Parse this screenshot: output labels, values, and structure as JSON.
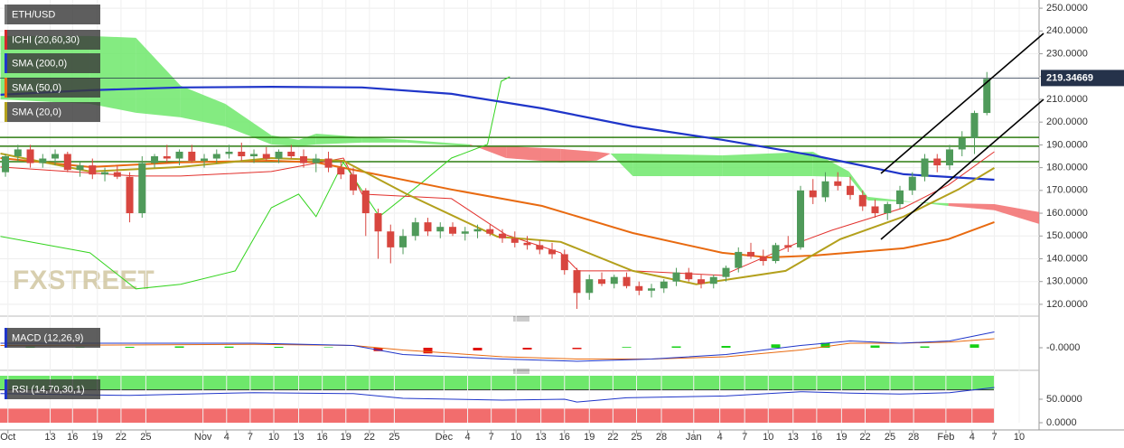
{
  "chart_data": [
    {
      "type": "candlestick",
      "symbol": "ETH/USD",
      "watermark": "FXSTREET",
      "grid": true,
      "up_color": "#4f9a5a",
      "down_color": "#d8463f",
      "xlim": [
        -0.44,
        83.2
      ],
      "ylim": [
        116.8,
        253.6
      ],
      "yticks": [
        {
          "value": 120,
          "label": "120.0000"
        },
        {
          "value": 130,
          "label": "130.0000"
        },
        {
          "value": 140,
          "label": "140.0000"
        },
        {
          "value": 150,
          "label": "150.0000"
        },
        {
          "value": 160,
          "label": "160.0000"
        },
        {
          "value": 170,
          "label": "170.0000"
        },
        {
          "value": 180,
          "label": "180.0000"
        },
        {
          "value": 190,
          "label": "190.0000"
        },
        {
          "value": 200,
          "label": "200.0000"
        },
        {
          "value": 210,
          "label": "210.0000"
        },
        {
          "value": 220,
          "label": "220.0000"
        },
        {
          "value": 230,
          "label": "230.0000"
        },
        {
          "value": 240,
          "label": "240.0000"
        },
        {
          "value": 250,
          "label": "250.0000"
        }
      ],
      "last_price": 219.34669,
      "last_price_color": "#25324a",
      "levels": [
        193.3,
        189.4,
        182.6
      ],
      "level_color": "#2f7d12",
      "x": [
        0,
        1,
        2,
        3,
        4,
        5,
        6,
        7,
        8,
        9,
        10,
        11,
        12,
        13,
        14,
        15,
        16,
        17,
        18,
        19,
        20,
        21,
        22,
        23,
        24,
        25,
        26,
        27,
        28,
        29,
        30,
        31,
        32,
        33,
        34,
        35,
        36,
        37,
        38,
        39,
        40,
        41,
        42,
        43,
        44,
        45,
        46,
        47,
        48,
        49,
        50,
        51,
        52,
        53,
        54,
        55,
        56,
        57,
        58,
        59,
        60,
        61,
        62,
        63,
        64,
        65,
        66,
        67,
        68,
        69,
        70,
        71,
        72,
        73,
        74,
        75,
        76,
        77,
        78,
        79
      ],
      "candles": [
        [
          178,
          186,
          176,
          185
        ],
        [
          185,
          190,
          183,
          188
        ],
        [
          188,
          190,
          180,
          182
        ],
        [
          182,
          186,
          180,
          184
        ],
        [
          184,
          188,
          181,
          186
        ],
        [
          186,
          187,
          178,
          179
        ],
        [
          179,
          183,
          176,
          181
        ],
        [
          181,
          184,
          175,
          177
        ],
        [
          177,
          180,
          174,
          178
        ],
        [
          178,
          181,
          175,
          176
        ],
        [
          176,
          178,
          156,
          160
        ],
        [
          160,
          185,
          158,
          182
        ],
        [
          182,
          186,
          180,
          185
        ],
        [
          185,
          190,
          182,
          184
        ],
        [
          184,
          188,
          181,
          187
        ],
        [
          187,
          190,
          182,
          183
        ],
        [
          183,
          186,
          180,
          184
        ],
        [
          184,
          188,
          182,
          186
        ],
        [
          186,
          190,
          184,
          187
        ],
        [
          187,
          191,
          183,
          185
        ],
        [
          185,
          188,
          182,
          186
        ],
        [
          186,
          189,
          183,
          184
        ],
        [
          184,
          188,
          182,
          187
        ],
        [
          187,
          190,
          184,
          185
        ],
        [
          185,
          188,
          180,
          182
        ],
        [
          182,
          186,
          178,
          184
        ],
        [
          184,
          187,
          178,
          180
        ],
        [
          180,
          183,
          175,
          177
        ],
        [
          177,
          180,
          168,
          170
        ],
        [
          170,
          171,
          150,
          160
        ],
        [
          160,
          162,
          140,
          152
        ],
        [
          152,
          155,
          138,
          145
        ],
        [
          145,
          153,
          142,
          150
        ],
        [
          150,
          158,
          148,
          156
        ],
        [
          156,
          158,
          150,
          152
        ],
        [
          152,
          156,
          149,
          154
        ],
        [
          154,
          156,
          150,
          151
        ],
        [
          151,
          154,
          148,
          152
        ],
        [
          152,
          155,
          149,
          153
        ],
        [
          153,
          155,
          150,
          151
        ],
        [
          151,
          153,
          147,
          149
        ],
        [
          149,
          152,
          145,
          147
        ],
        [
          147,
          150,
          144,
          146
        ],
        [
          146,
          148,
          142,
          144
        ],
        [
          144,
          147,
          140,
          142
        ],
        [
          142,
          144,
          133,
          135
        ],
        [
          135,
          136,
          118,
          125
        ],
        [
          125,
          133,
          122,
          131
        ],
        [
          131,
          134,
          128,
          129
        ],
        [
          129,
          133,
          127,
          132
        ],
        [
          132,
          134,
          127,
          128
        ],
        [
          128,
          130,
          124,
          126
        ],
        [
          126,
          129,
          123,
          127
        ],
        [
          127,
          131,
          125,
          130
        ],
        [
          130,
          136,
          128,
          134
        ],
        [
          134,
          136,
          130,
          131
        ],
        [
          131,
          133,
          127,
          129
        ],
        [
          129,
          133,
          127,
          132
        ],
        [
          132,
          137,
          130,
          136
        ],
        [
          136,
          145,
          134,
          143
        ],
        [
          143,
          147,
          140,
          141
        ],
        [
          141,
          144,
          137,
          139
        ],
        [
          139,
          147,
          138,
          146
        ],
        [
          146,
          150,
          143,
          145
        ],
        [
          145,
          172,
          144,
          170
        ],
        [
          170,
          175,
          164,
          167
        ],
        [
          167,
          178,
          165,
          174
        ],
        [
          174,
          178,
          170,
          172
        ],
        [
          172,
          176,
          166,
          168
        ],
        [
          168,
          170,
          161,
          163
        ],
        [
          163,
          166,
          158,
          160
        ],
        [
          160,
          165,
          157,
          164
        ],
        [
          164,
          172,
          162,
          170
        ],
        [
          170,
          178,
          168,
          176
        ],
        [
          176,
          186,
          174,
          184
        ],
        [
          184,
          186,
          178,
          181
        ],
        [
          181,
          190,
          179,
          188
        ],
        [
          188,
          196,
          185,
          193
        ],
        [
          193,
          205,
          186,
          204
        ],
        [
          204,
          222,
          203,
          219
        ]
      ],
      "ichimoku": {
        "name": "ICHI (20,60,30)",
        "color": "#d3282c",
        "cloud": {
          "up_color": "#6ee86b",
          "down_color": "#f26d6d",
          "x": [
            -0.4,
            6.8,
            10.5,
            14.1,
            17.7,
            21.4,
            23.6,
            25.0,
            28.7,
            32.3,
            37.4,
            40.3,
            44.7,
            47.6,
            48.7,
            50.5,
            57.7,
            65.0,
            67.9,
            69.4,
            75.9,
            79.6,
            83.2
          ],
          "span_a": [
            237.8,
            237.8,
            237.0,
            216.0,
            208.0,
            194.2,
            192.2,
            194.9,
            193.4,
            192.2,
            190.2,
            184.2,
            182.3,
            183.1,
            186.2,
            186.2,
            185.4,
            187.0,
            178.3,
            167.2,
            163.2,
            161.3,
            155.3
          ],
          "span_b": [
            210.0,
            208.0,
            204.1,
            202.1,
            198.1,
            190.2,
            189.4,
            190.2,
            191.0,
            191.0,
            189.4,
            189.4,
            188.2,
            187.0,
            186.2,
            176.3,
            176.3,
            176.3,
            175.9,
            165.6,
            164.4,
            164.0,
            160.5
          ]
        },
        "conversion": {
          "color": "#e2302c",
          "x": [
            -0.4,
            10.5,
            14.1,
            21.4,
            27.2,
            28.7,
            35.9,
            40.3,
            44.7,
            46.1,
            50.5,
            57.7,
            63.6,
            66.5,
            72.3,
            75.9,
            79.6
          ],
          "values": [
            180.3,
            176.3,
            176.3,
            178.3,
            184.2,
            168.4,
            166.4,
            150.5,
            142.6,
            134.7,
            134.7,
            132.7,
            146.6,
            152.5,
            162.4,
            172.4,
            187.0
          ]
        },
        "lagging": {
          "color": "#34d41f",
          "x": [
            -0.4,
            6.8,
            10.5,
            14.1,
            18.5,
            21.4,
            23.6,
            25.0,
            27.2,
            30.1,
            33.7,
            35.9,
            38.8,
            39.9,
            40.6
          ],
          "values": [
            149.8,
            142.6,
            126.8,
            128.8,
            134.7,
            162.4,
            168.4,
            158.5,
            182.3,
            158.5,
            174.2,
            184.2,
            190.2,
            217.9,
            219.9
          ]
        }
      },
      "series": [
        {
          "name": "SMA (200,0)",
          "color": "#1f35c9",
          "width": 2.2,
          "x": [
            -0.4,
            6.8,
            14.1,
            21.4,
            28.7,
            35.9,
            43.2,
            50.5,
            57.7,
            65.0,
            72.3,
            79.6
          ],
          "values": [
            212.0,
            214.0,
            215.2,
            215.5,
            215.2,
            212.4,
            206.0,
            198.1,
            192.2,
            185.4,
            177.1,
            174.7
          ]
        },
        {
          "name": "SMA (50,0)",
          "color": "#e86a10",
          "width": 2,
          "x": [
            -0.4,
            6.8,
            14.1,
            21.4,
            25.0,
            28.7,
            35.9,
            43.2,
            50.5,
            57.7,
            61.4,
            65.0,
            72.3,
            75.9,
            79.6
          ],
          "values": [
            184.2,
            180.3,
            182.3,
            183.0,
            182.3,
            178.3,
            170.4,
            163.2,
            151.3,
            142.6,
            140.6,
            141.4,
            144.6,
            148.6,
            156.1
          ]
        },
        {
          "name": "SMA (20,0)",
          "color": "#b3a01c",
          "width": 2,
          "x": [
            -0.4,
            6.8,
            14.1,
            21.4,
            27.2,
            32.3,
            39.6,
            44.7,
            50.5,
            55.6,
            62.8,
            67.2,
            72.3,
            76.7,
            79.6
          ],
          "values": [
            186.2,
            178.3,
            180.3,
            184.2,
            183.0,
            168.4,
            149.7,
            147.4,
            134.7,
            128.8,
            134.7,
            148.6,
            158.5,
            170.4,
            179.9
          ]
        }
      ]
    },
    {
      "type": "macd",
      "name": "MACD (12,26,9)",
      "xlim": [
        -0.44,
        83.2
      ],
      "ylim": [
        -8,
        11.6
      ],
      "yticks": [
        {
          "value": 0,
          "label": "-0.0000"
        }
      ],
      "macd": {
        "color": "#1f35c9",
        "x": [
          -0.4,
          20,
          28,
          32,
          40,
          46,
          52,
          58,
          64,
          68,
          72,
          76,
          79.6
        ],
        "values": [
          2,
          2,
          1,
          -3,
          -5,
          -6,
          -5,
          -3,
          1,
          3,
          2,
          3,
          7
        ]
      },
      "signal": {
        "color": "#e86a10",
        "x": [
          -0.4,
          20,
          28,
          32,
          40,
          46,
          52,
          58,
          64,
          68,
          72,
          76,
          79.6
        ],
        "values": [
          1,
          1.5,
          1,
          -1,
          -4,
          -5,
          -5,
          -4,
          -1,
          2,
          2,
          2.5,
          4
        ]
      },
      "histogram": {
        "up_color": "#16d016",
        "down_color": "#e0140f",
        "x": [
          2,
          6,
          10,
          14,
          18,
          22,
          26,
          30,
          34,
          38,
          42,
          46,
          50,
          54,
          58,
          62,
          66,
          70,
          74,
          78
        ],
        "values": [
          0.5,
          0.3,
          0.4,
          0.6,
          0.5,
          0.4,
          0.2,
          -1.5,
          -2.5,
          -1.2,
          -0.8,
          -0.6,
          0.3,
          0.6,
          0.8,
          1.5,
          2.2,
          1.0,
          0.6,
          1.5
        ]
      }
    },
    {
      "type": "rsi",
      "name": "RSI (14,70,30,1)",
      "color": "#1f35c9",
      "xlim": [
        -0.44,
        83.2
      ],
      "ylim": [
        0,
        100
      ],
      "overbought": 70,
      "oversold": 30,
      "overbought_color": "#6ee86b",
      "oversold_color": "#f26d6d",
      "yticks": [
        {
          "value": 0,
          "label": "0.0000"
        },
        {
          "value": 50,
          "label": "50.0000"
        }
      ],
      "x": [
        -0.4,
        10,
        20,
        28,
        32,
        40,
        45,
        46,
        50,
        58,
        64,
        68,
        72,
        76,
        79.6
      ],
      "values": [
        62,
        58,
        64,
        62,
        52,
        48,
        50,
        44,
        53,
        57,
        66,
        63,
        61,
        64,
        75
      ],
      "xticks": [
        {
          "value": 0.2,
          "label": "Oct"
        },
        3.6,
        5.4,
        7.4,
        9.3,
        11.3,
        {
          "value": 15.9,
          "label": "Nov"
        },
        17.8,
        19.7,
        21.6,
        23.6,
        25.5,
        27.4,
        29.3,
        31.3,
        {
          "value": 35.3,
          "label": "Dec"
        },
        37.2,
        39.1,
        41.1,
        43.1,
        45.0,
        47.0,
        48.9,
        50.8,
        52.8,
        {
          "value": 55.4,
          "label": "Jan"
        },
        57.5,
        59.5,
        61.4,
        63.4,
        65.3,
        67.3,
        69.2,
        71.2,
        73.1,
        {
          "value": 75.7,
          "label": "Feb"
        },
        77.8,
        79.6,
        81.6
      ],
      "xtick_labels": [
        null,
        "13",
        "16",
        "19",
        "22",
        "25",
        null,
        "4",
        "7",
        "10",
        "13",
        "16",
        "19",
        "22",
        "25",
        null,
        "4",
        "7",
        "10",
        "13",
        "16",
        "19",
        "22",
        "25",
        "28",
        null,
        "4",
        "7",
        "10",
        "13",
        "16",
        "19",
        "22",
        "25",
        "28",
        null,
        "4",
        "7",
        "10"
      ]
    }
  ]
}
